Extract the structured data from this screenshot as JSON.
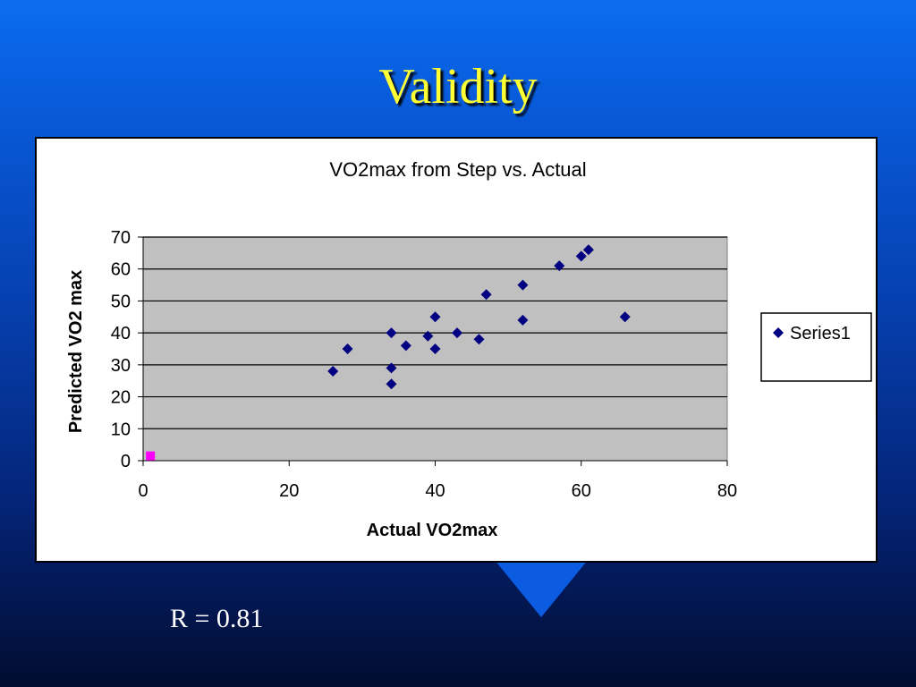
{
  "slide": {
    "title": "Validity",
    "footer_text": "R = 0.81"
  },
  "colors": {
    "title": "#ffff33",
    "plot_area": "#c0c0c0",
    "series1": "#000080",
    "series2": "#ff00ff"
  },
  "chart_data": {
    "type": "scatter",
    "title": "VO2max from Step vs. Actual",
    "xlabel": "Actual VO2max",
    "ylabel": "Predicted VO2 max",
    "xlim": [
      0,
      80
    ],
    "ylim": [
      0,
      70
    ],
    "xticks": [
      0,
      20,
      40,
      60,
      80
    ],
    "yticks": [
      0,
      10,
      20,
      30,
      40,
      50,
      60,
      70
    ],
    "grid": "horizontal",
    "legend_position": "right",
    "series": [
      {
        "name": "Series1",
        "marker": "diamond",
        "color": "#000080",
        "points": [
          {
            "x": 26,
            "y": 28
          },
          {
            "x": 28,
            "y": 35
          },
          {
            "x": 34,
            "y": 24
          },
          {
            "x": 34,
            "y": 29
          },
          {
            "x": 34,
            "y": 40
          },
          {
            "x": 36,
            "y": 36
          },
          {
            "x": 39,
            "y": 39
          },
          {
            "x": 40,
            "y": 35
          },
          {
            "x": 40,
            "y": 45
          },
          {
            "x": 43,
            "y": 40
          },
          {
            "x": 46,
            "y": 38
          },
          {
            "x": 47,
            "y": 52
          },
          {
            "x": 52,
            "y": 44
          },
          {
            "x": 52,
            "y": 55
          },
          {
            "x": 57,
            "y": 61
          },
          {
            "x": 60,
            "y": 64
          },
          {
            "x": 61,
            "y": 66
          },
          {
            "x": 66,
            "y": 45
          }
        ]
      },
      {
        "name": "",
        "marker": "square",
        "color": "#ff00ff",
        "points": [
          {
            "x": 1,
            "y": 1.5
          }
        ]
      }
    ]
  }
}
